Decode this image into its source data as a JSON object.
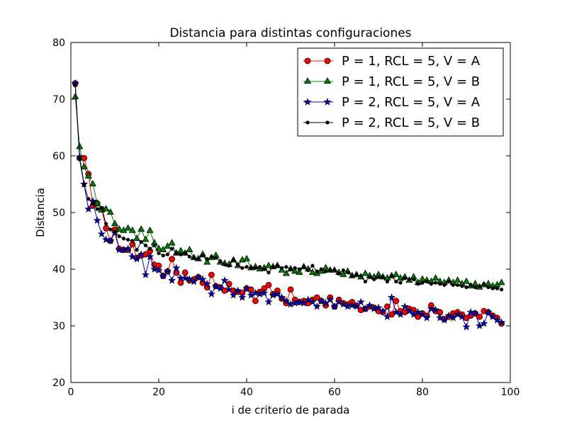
{
  "chart_data": {
    "type": "line",
    "title": "Distancia para distintas configuraciones",
    "xlabel": "i de criterio de parada",
    "ylabel": "Distancia",
    "xlim": [
      0,
      100
    ],
    "ylim": [
      20,
      80
    ],
    "xticks": [
      0,
      20,
      40,
      60,
      80,
      100
    ],
    "yticks": [
      20,
      30,
      40,
      50,
      60,
      70,
      80
    ],
    "grid": false,
    "legend_position": "top-right",
    "x": [
      1,
      2,
      3,
      4,
      5,
      6,
      7,
      8,
      9,
      10,
      11,
      12,
      13,
      14,
      15,
      16,
      17,
      18,
      19,
      20,
      21,
      22,
      23,
      24,
      25,
      26,
      27,
      28,
      29,
      30,
      31,
      32,
      33,
      34,
      35,
      36,
      37,
      38,
      39,
      40,
      41,
      42,
      43,
      44,
      45,
      46,
      47,
      48,
      49,
      50,
      51,
      52,
      53,
      54,
      55,
      56,
      57,
      58,
      59,
      60,
      61,
      62,
      63,
      64,
      65,
      66,
      67,
      68,
      69,
      70,
      71,
      72,
      73,
      74,
      75,
      76,
      77,
      78,
      79,
      80,
      81,
      82,
      83,
      84,
      85,
      86,
      87,
      88,
      89,
      90,
      91,
      92,
      93,
      94,
      95,
      96,
      97,
      98
    ],
    "series": [
      {
        "name": "P = 1, RCL = 5, V = A",
        "color": "#ff0000",
        "marker": "circle",
        "values": [
          72.8,
          59.6,
          59.6,
          56.8,
          51.2,
          51.6,
          50.6,
          47.2,
          45.0,
          47.0,
          43.6,
          43.4,
          43.4,
          44.4,
          42.0,
          42.4,
          42.6,
          43.2,
          40.8,
          40.6,
          38.8,
          39.6,
          41.8,
          39.4,
          37.6,
          39.4,
          38.0,
          38.2,
          38.6,
          37.6,
          36.8,
          39.0,
          37.0,
          36.8,
          36.2,
          37.4,
          36.2,
          36.0,
          35.8,
          36.6,
          36.4,
          34.4,
          36.0,
          36.6,
          37.2,
          35.6,
          36.2,
          34.8,
          34.0,
          36.4,
          34.6,
          34.2,
          34.4,
          34.0,
          34.6,
          35.0,
          34.4,
          33.6,
          35.0,
          33.4,
          34.6,
          34.0,
          33.8,
          34.2,
          33.6,
          32.8,
          33.0,
          33.4,
          33.2,
          32.6,
          32.4,
          33.4,
          32.0,
          34.4,
          32.6,
          32.4,
          33.0,
          32.8,
          31.6,
          32.2,
          31.8,
          33.6,
          32.6,
          32.4,
          31.2,
          31.6,
          32.2,
          32.4,
          32.0,
          31.4,
          31.8,
          32.2,
          31.6,
          32.6,
          32.4,
          31.8,
          31.4,
          30.4
        ]
      },
      {
        "name": "P = 1, RCL = 5, V = B",
        "color": "#008000",
        "marker": "triangle",
        "values": [
          70.4,
          61.6,
          58.0,
          56.4,
          55.0,
          51.6,
          50.4,
          50.6,
          50.0,
          48.0,
          47.0,
          46.8,
          47.2,
          46.8,
          45.4,
          47.0,
          45.2,
          46.8,
          44.6,
          43.6,
          43.4,
          44.0,
          44.6,
          42.8,
          43.2,
          42.8,
          43.4,
          42.0,
          41.8,
          42.6,
          41.2,
          42.0,
          42.4,
          41.2,
          41.0,
          40.8,
          41.6,
          40.6,
          41.6,
          41.8,
          40.2,
          40.4,
          40.0,
          40.2,
          40.6,
          40.4,
          40.6,
          39.8,
          39.2,
          40.0,
          39.6,
          39.4,
          40.4,
          40.0,
          39.4,
          39.2,
          39.6,
          40.2,
          39.8,
          39.8,
          39.4,
          39.0,
          39.6,
          38.8,
          39.0,
          38.6,
          39.2,
          38.8,
          38.6,
          39.0,
          38.6,
          38.4,
          38.8,
          39.0,
          38.4,
          38.6,
          38.0,
          38.6,
          37.6,
          38.2,
          38.0,
          37.8,
          38.4,
          37.8,
          37.6,
          38.0,
          37.6,
          38.0,
          37.4,
          37.8,
          37.0,
          37.4,
          36.8,
          37.2,
          37.4,
          37.0,
          37.2,
          37.6
        ]
      },
      {
        "name": "P = 2, RCL = 5, V = A",
        "color": "#0000bf",
        "marker": "star",
        "values": [
          72.8,
          59.8,
          55.0,
          50.6,
          52.0,
          48.6,
          46.2,
          45.2,
          45.0,
          46.4,
          43.4,
          43.4,
          43.6,
          42.2,
          41.8,
          42.6,
          39.0,
          42.2,
          40.0,
          39.8,
          38.8,
          39.6,
          38.0,
          40.2,
          38.4,
          38.4,
          38.2,
          37.8,
          38.6,
          38.2,
          37.4,
          35.6,
          37.0,
          36.6,
          38.0,
          36.4,
          35.4,
          36.2,
          35.0,
          36.6,
          35.4,
          35.8,
          35.6,
          35.8,
          34.2,
          35.4,
          35.6,
          35.0,
          34.4,
          33.8,
          34.0,
          34.2,
          34.0,
          34.6,
          34.2,
          33.4,
          34.4,
          34.0,
          34.6,
          33.4,
          34.2,
          33.8,
          33.4,
          33.6,
          33.4,
          34.2,
          33.0,
          33.6,
          33.0,
          33.2,
          32.6,
          31.6,
          35.0,
          32.4,
          32.0,
          33.4,
          32.6,
          32.0,
          32.4,
          32.0,
          31.4,
          33.0,
          32.8,
          31.4,
          31.0,
          31.8,
          31.4,
          32.0,
          31.6,
          29.8,
          32.4,
          32.2,
          30.0,
          30.4,
          32.4,
          31.6,
          31.0,
          30.6
        ]
      },
      {
        "name": "P = 2, RCL = 5, V = B",
        "color": "#000000",
        "marker": "dot",
        "values": [
          72.4,
          59.4,
          54.8,
          52.4,
          51.6,
          50.6,
          50.8,
          48.0,
          47.0,
          46.6,
          45.8,
          45.4,
          45.2,
          45.0,
          43.4,
          44.8,
          44.2,
          43.6,
          44.2,
          42.8,
          42.4,
          42.6,
          43.6,
          42.8,
          42.6,
          42.8,
          42.2,
          42.0,
          41.8,
          42.4,
          41.8,
          42.2,
          42.0,
          41.4,
          40.8,
          40.6,
          41.6,
          40.8,
          40.2,
          40.4,
          40.2,
          40.2,
          40.4,
          40.0,
          39.4,
          40.4,
          40.6,
          40.2,
          40.4,
          40.0,
          40.2,
          40.0,
          40.4,
          39.8,
          40.6,
          39.6,
          40.0,
          39.6,
          39.8,
          39.8,
          39.2,
          39.8,
          39.4,
          38.8,
          39.0,
          38.8,
          37.8,
          38.6,
          38.2,
          38.6,
          38.6,
          37.8,
          38.8,
          37.8,
          37.6,
          38.4,
          38.2,
          38.2,
          37.4,
          37.6,
          37.8,
          37.4,
          37.6,
          37.4,
          37.2,
          37.8,
          37.2,
          37.2,
          37.0,
          36.8,
          37.2,
          36.8,
          37.0,
          37.4,
          36.8,
          36.6,
          36.6,
          36.4
        ]
      }
    ]
  }
}
